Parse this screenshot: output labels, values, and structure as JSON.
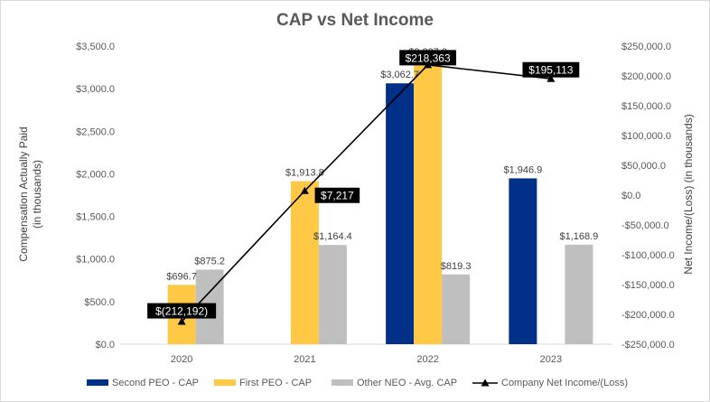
{
  "chart_data": {
    "type": "bar",
    "title": "CAP vs Net Income",
    "ylabel_lines": [
      "Compensation Actually Paid",
      "(in thousands)"
    ],
    "y2label": "Net Income/(Loss) (in thousands)",
    "categories": [
      "2020",
      "2021",
      "2022",
      "2023"
    ],
    "ylim": [
      0,
      3500
    ],
    "y2lim": [
      -250000,
      250000
    ],
    "y_ticks": [
      "$0.0",
      "$500.0",
      "$1,000.0",
      "$1,500.0",
      "$2,000.0",
      "$2,500.0",
      "$3,000.0",
      "$3,500.0"
    ],
    "y2_ticks": [
      "-$250,000.0",
      "-$200,000.0",
      "-$150,000.0",
      "-$100,000.0",
      "-$50,000.0",
      "$0.0",
      "$50,000.0",
      "$100,000.0",
      "$150,000.0",
      "$200,000.0",
      "$250,000.0"
    ],
    "series": [
      {
        "name": "Second PEO - CAP",
        "type": "bar",
        "color": "#003087",
        "values": [
          null,
          null,
          3062.7,
          1946.9
        ],
        "labels": [
          null,
          null,
          "$3,062.7",
          "$1,946.9"
        ]
      },
      {
        "name": "First PEO - CAP",
        "type": "bar",
        "color": "#FFC845",
        "values": [
          696.7,
          1913.8,
          3327.8,
          null
        ],
        "labels": [
          "$696.7",
          "$1,913.8",
          "$3,327.8",
          null
        ]
      },
      {
        "name": "Other NEO - Avg. CAP",
        "type": "bar",
        "color": "#BFBFBF",
        "values": [
          875.2,
          1164.4,
          819.3,
          1168.9
        ],
        "labels": [
          "$875.2",
          "$1,164.4",
          "$819.3",
          "$1,168.9"
        ]
      },
      {
        "name": "Company Net Income/(Loss)",
        "type": "line",
        "axis": "right",
        "color": "#000000",
        "values": [
          -212192,
          7217,
          218363,
          195113
        ],
        "labels": [
          "$(212,192)",
          "$7,217",
          "$218,363",
          "$195,113"
        ]
      }
    ],
    "grid": false,
    "legend_position": "bottom"
  }
}
